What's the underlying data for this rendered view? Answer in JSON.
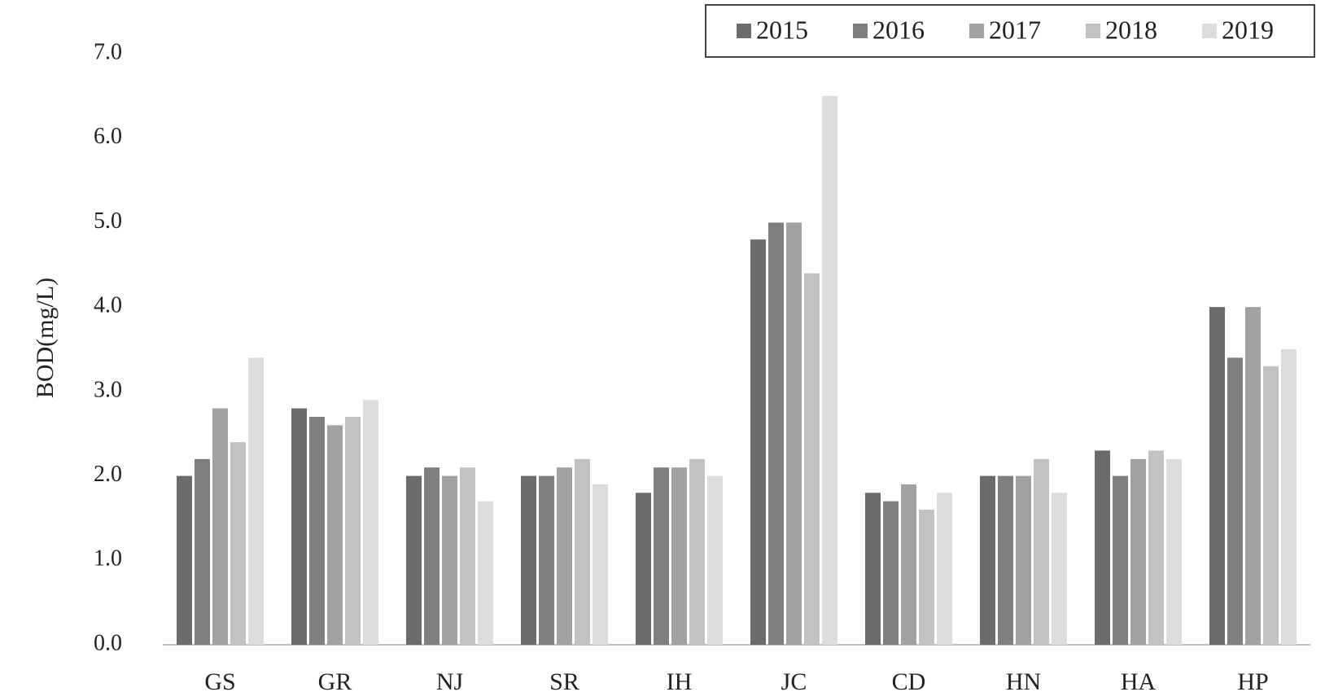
{
  "chart_data": {
    "type": "bar",
    "y_label": "BOD(mg/L)",
    "categories": [
      "GS",
      "GR",
      "NJ",
      "SR",
      "IH",
      "JC",
      "CD",
      "HN",
      "HA",
      "HP"
    ],
    "series": [
      {
        "name": "2015",
        "color": "#6b6b6b",
        "values": [
          2.0,
          2.8,
          2.0,
          2.0,
          1.8,
          4.8,
          1.8,
          2.0,
          2.3,
          4.0
        ]
      },
      {
        "name": "2016",
        "color": "#7f7f7f",
        "values": [
          2.2,
          2.7,
          2.1,
          2.0,
          2.1,
          5.0,
          1.7,
          2.0,
          2.0,
          3.4
        ]
      },
      {
        "name": "2017",
        "color": "#a2a2a2",
        "values": [
          2.8,
          2.6,
          2.0,
          2.1,
          2.1,
          5.0,
          1.9,
          2.0,
          2.2,
          4.0
        ]
      },
      {
        "name": "2018",
        "color": "#c2c2c2",
        "values": [
          2.4,
          2.7,
          2.1,
          2.2,
          2.2,
          4.4,
          1.6,
          2.2,
          2.3,
          3.3
        ]
      },
      {
        "name": "2019",
        "color": "#dcdcdc",
        "values": [
          3.4,
          2.9,
          1.7,
          1.9,
          2.0,
          6.5,
          1.8,
          1.8,
          2.2,
          3.5
        ]
      }
    ],
    "ylim": [
      0,
      7
    ],
    "yticks": [
      {
        "value": 0,
        "label": "0.0"
      },
      {
        "value": 1,
        "label": "1.0"
      },
      {
        "value": 2,
        "label": "2.0"
      },
      {
        "value": 3,
        "label": "3.0"
      },
      {
        "value": 4,
        "label": "4.0"
      },
      {
        "value": 5,
        "label": "5.0"
      },
      {
        "value": 6,
        "label": "6.0"
      },
      {
        "value": 7,
        "label": "7.0"
      }
    ],
    "legend_position": "top-right"
  }
}
